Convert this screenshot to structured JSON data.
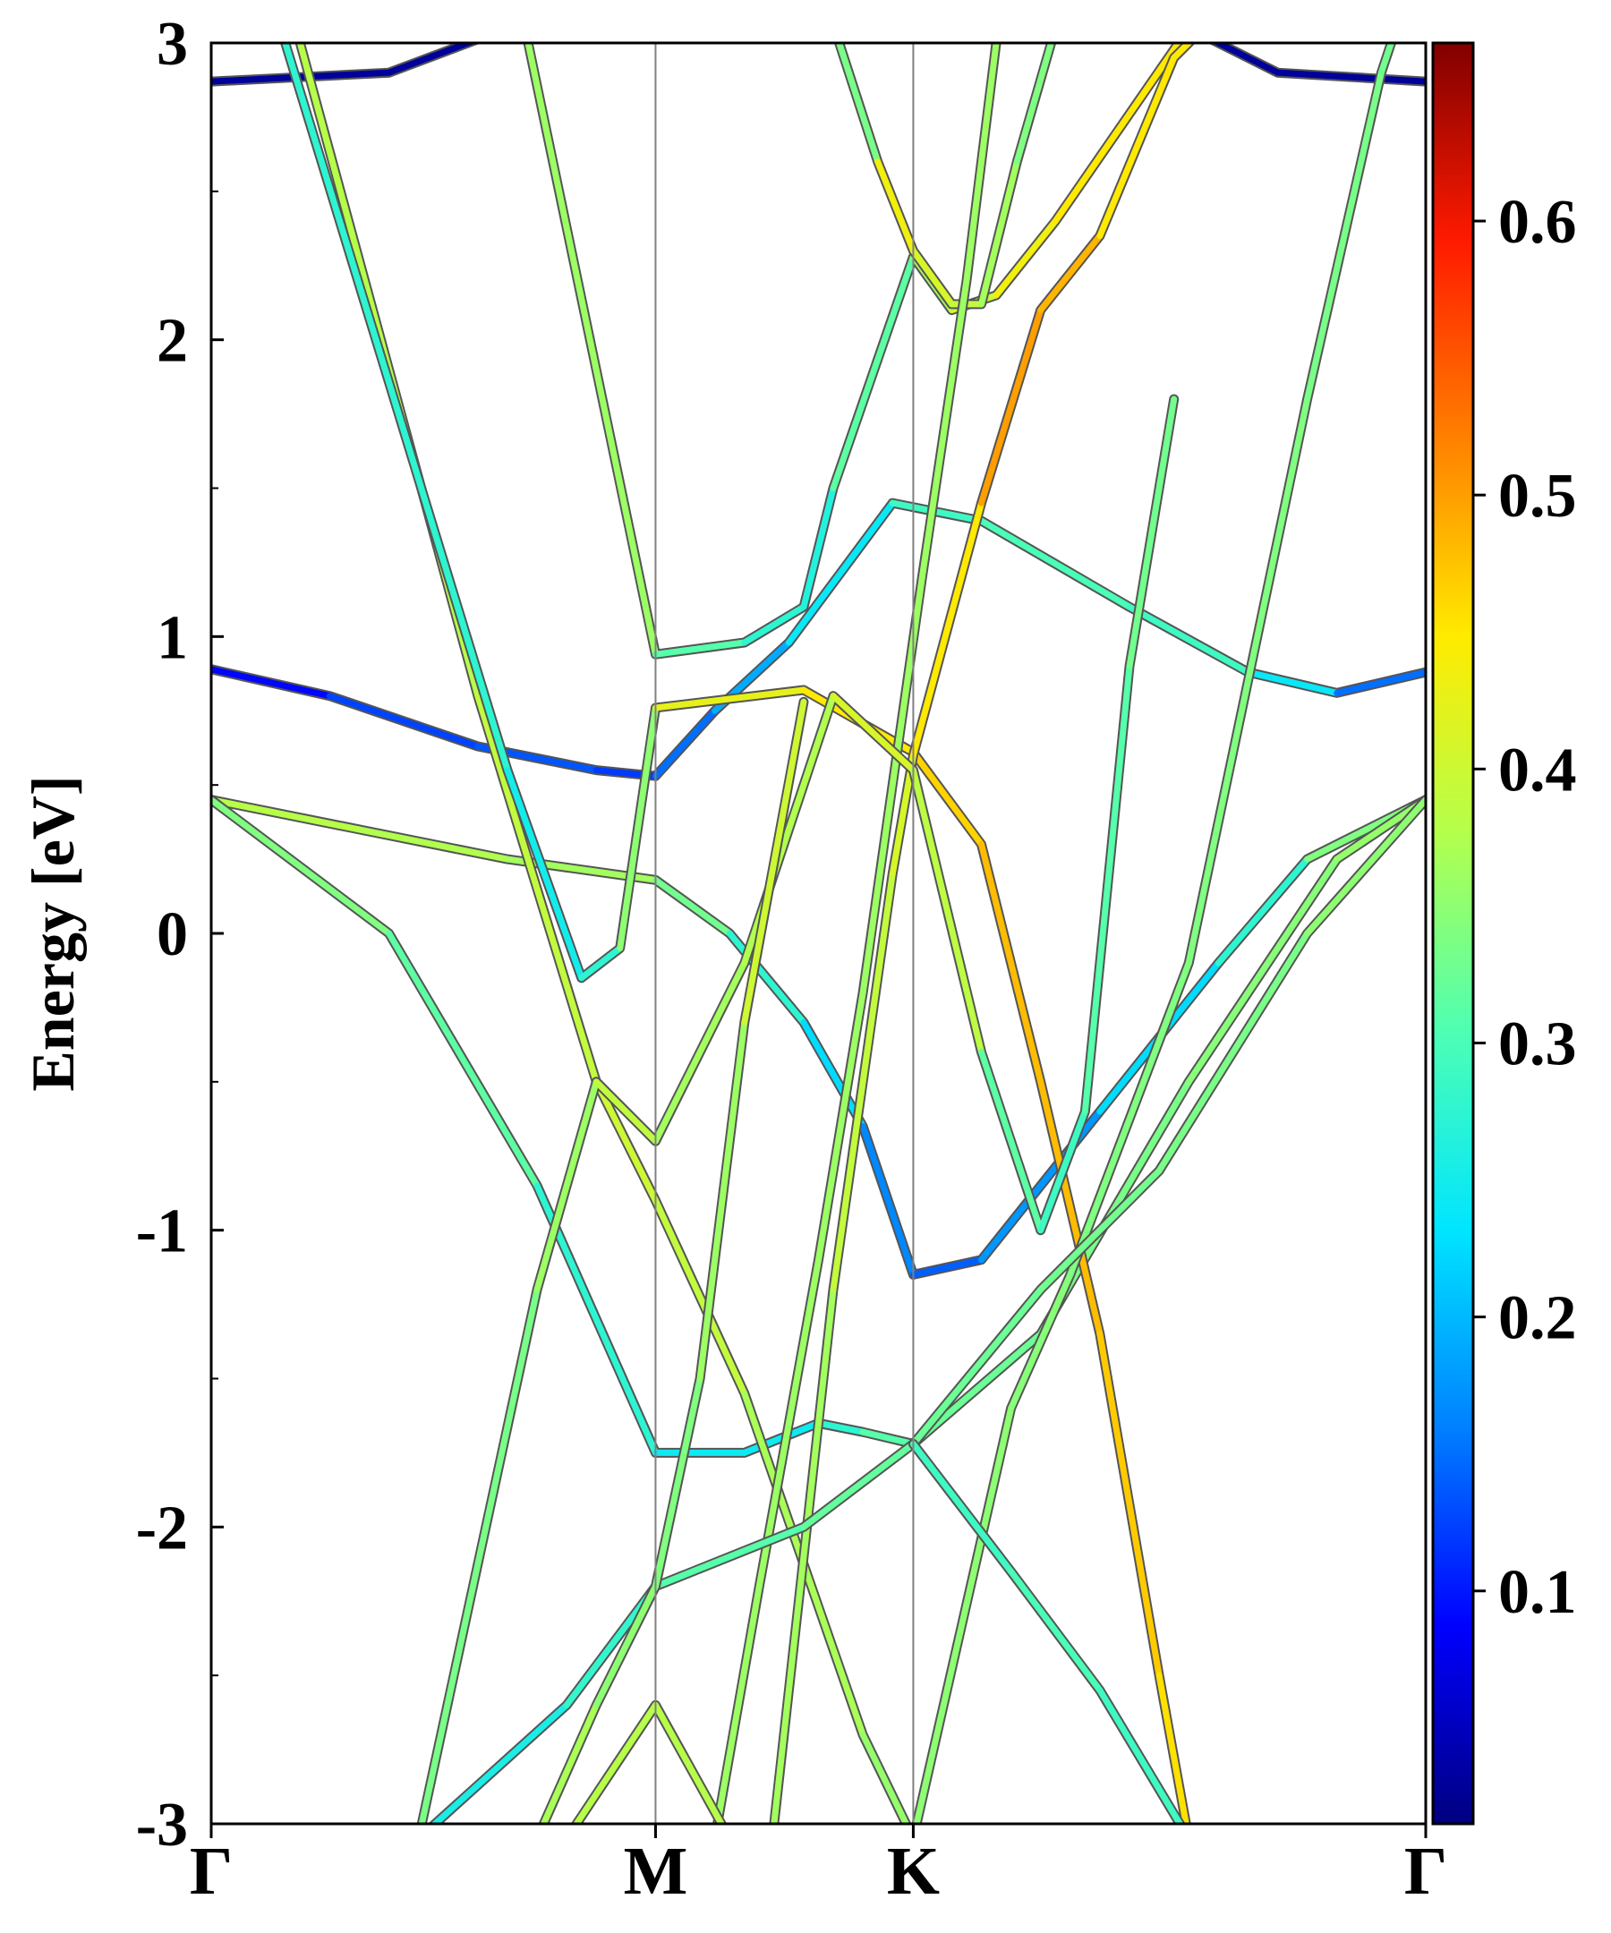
{
  "chart_data": {
    "type": "line",
    "title": "",
    "ylabel": "Energy [eV]",
    "xlabel": "",
    "ylim": [
      -3,
      3
    ],
    "xlim": [
      0,
      4.1
    ],
    "yticks": [
      -3,
      -2,
      -1,
      0,
      1,
      2,
      3
    ],
    "ytick_labels": [
      "-3",
      "-2",
      "-1",
      "0",
      "1",
      "2",
      "3"
    ],
    "kpoints": [
      {
        "label": "Γ",
        "x": 0
      },
      {
        "label": "M",
        "x": 1.5
      },
      {
        "label": "K",
        "x": 2.37
      },
      {
        "label": "Γ",
        "x": 4.1
      }
    ],
    "grid": false,
    "colorbar": {
      "min": 0.015,
      "max": 0.665,
      "ticks": [
        0.1,
        0.2,
        0.3,
        0.4,
        0.5,
        0.6
      ],
      "tick_labels": [
        "0.1",
        "0.2",
        "0.3",
        "0.4",
        "0.5",
        "0.6"
      ],
      "colormap": [
        "#000080",
        "#0000ff",
        "#0080ff",
        "#00e5ff",
        "#4dffb3",
        "#b3ff4d",
        "#ffeb00",
        "#ff8000",
        "#ff1a00",
        "#800000"
      ]
    },
    "series": [
      {
        "points": [
          [
            0,
            2.87
          ],
          [
            0.6,
            2.9
          ],
          [
            1.0,
            3.05
          ]
        ],
        "weights": [
          0.03,
          0.03,
          0.03
        ]
      },
      {
        "points": [
          [
            4.1,
            2.87
          ],
          [
            3.6,
            2.9
          ],
          [
            3.3,
            3.05
          ]
        ],
        "weights": [
          0.03,
          0.03,
          0.03
        ]
      },
      {
        "points": [
          [
            0,
            0.89
          ],
          [
            0.4,
            0.8
          ],
          [
            0.9,
            0.63
          ],
          [
            1.3,
            0.55
          ],
          [
            1.5,
            0.53
          ],
          [
            1.7,
            0.75
          ],
          [
            1.95,
            0.98
          ],
          [
            2.3,
            1.45
          ],
          [
            2.6,
            1.39
          ],
          [
            3.1,
            1.1
          ],
          [
            3.5,
            0.88
          ],
          [
            3.8,
            0.81
          ],
          [
            4.1,
            0.88
          ]
        ],
        "weights": [
          0.08,
          0.1,
          0.15,
          0.12,
          0.12,
          0.18,
          0.2,
          0.28,
          0.3,
          0.3,
          0.28,
          0.2,
          0.1
        ]
      },
      {
        "points": [
          [
            0,
            0.45
          ],
          [
            0.5,
            0.35
          ],
          [
            1.0,
            0.25
          ],
          [
            1.5,
            0.18
          ],
          [
            1.75,
            0.0
          ],
          [
            2.0,
            -0.3
          ],
          [
            2.2,
            -0.65
          ],
          [
            2.37,
            -1.15
          ],
          [
            2.6,
            -1.1
          ],
          [
            3.0,
            -0.6
          ],
          [
            3.4,
            -0.1
          ],
          [
            3.7,
            0.25
          ],
          [
            4.1,
            0.45
          ]
        ],
        "weights": [
          0.38,
          0.38,
          0.37,
          0.36,
          0.3,
          0.25,
          0.2,
          0.13,
          0.15,
          0.2,
          0.25,
          0.3,
          0.38
        ]
      },
      {
        "points": [
          [
            0,
            0.45
          ],
          [
            0.6,
            0.0
          ],
          [
            1.1,
            -0.85
          ],
          [
            1.5,
            -1.75
          ],
          [
            1.8,
            -1.75
          ],
          [
            2.05,
            -1.65
          ],
          [
            2.2,
            -1.68
          ],
          [
            2.37,
            -1.72
          ],
          [
            2.8,
            -1.35
          ],
          [
            3.3,
            -0.5
          ],
          [
            3.8,
            0.25
          ],
          [
            4.1,
            0.45
          ]
        ],
        "weights": [
          0.35,
          0.33,
          0.3,
          0.25,
          0.24,
          0.25,
          0.3,
          0.32,
          0.33,
          0.34,
          0.35,
          0.36
        ]
      },
      {
        "points": [
          [
            0.3,
            3.0
          ],
          [
            0.9,
            0.8
          ],
          [
            1.3,
            -0.5
          ],
          [
            1.5,
            -0.9
          ],
          [
            1.8,
            -1.55
          ],
          [
            2.2,
            -2.7
          ],
          [
            2.37,
            -3.05
          ]
        ],
        "weights": [
          0.38,
          0.38,
          0.4,
          0.4,
          0.38,
          0.36,
          0.35
        ]
      },
      {
        "points": [
          [
            0.25,
            3.0
          ],
          [
            1.0,
            0.55
          ],
          [
            1.25,
            -0.15
          ],
          [
            1.38,
            -0.05
          ],
          [
            1.5,
            0.76
          ],
          [
            2.0,
            0.82
          ],
          [
            2.37,
            0.61
          ],
          [
            2.6,
            0.3
          ],
          [
            2.8,
            -0.5
          ],
          [
            3.0,
            -1.35
          ],
          [
            3.2,
            -2.5
          ],
          [
            3.3,
            -3.05
          ]
        ],
        "weights": [
          0.3,
          0.25,
          0.25,
          0.3,
          0.4,
          0.45,
          0.45,
          0.48,
          0.48,
          0.48,
          0.46,
          0.45
        ]
      },
      {
        "points": [
          [
            1.07,
            3.0
          ],
          [
            1.5,
            0.94
          ],
          [
            1.8,
            0.98
          ],
          [
            2.0,
            1.1
          ],
          [
            2.1,
            1.5
          ],
          [
            2.37,
            2.28
          ],
          [
            2.5,
            2.1
          ],
          [
            2.65,
            2.15
          ],
          [
            2.85,
            2.4
          ],
          [
            3.3,
            3.05
          ]
        ],
        "weights": [
          0.4,
          0.32,
          0.3,
          0.25,
          0.28,
          0.35,
          0.38,
          0.42,
          0.45,
          0.45
        ]
      },
      {
        "points": [
          [
            2.12,
            3.0
          ],
          [
            2.25,
            2.6
          ],
          [
            2.37,
            2.3
          ],
          [
            2.5,
            2.12
          ],
          [
            2.6,
            2.12
          ],
          [
            2.72,
            2.6
          ],
          [
            2.85,
            3.05
          ]
        ],
        "weights": [
          0.22,
          0.45,
          0.42,
          0.4,
          0.38,
          0.35,
          0.33
        ]
      },
      {
        "points": [
          [
            1.9,
            -3.0
          ],
          [
            2.1,
            -1.2
          ],
          [
            2.3,
            0.2
          ],
          [
            2.37,
            0.6
          ],
          [
            2.6,
            1.45
          ],
          [
            2.8,
            2.1
          ],
          [
            3.0,
            2.35
          ],
          [
            3.25,
            2.95
          ],
          [
            3.35,
            3.05
          ]
        ],
        "weights": [
          0.35,
          0.38,
          0.4,
          0.42,
          0.48,
          0.52,
          0.45,
          0.45,
          0.45
        ]
      },
      {
        "points": [
          [
            2.37,
            -3.05
          ],
          [
            2.7,
            -1.6
          ],
          [
            2.9,
            -1.15
          ],
          [
            3.3,
            -0.1
          ],
          [
            3.7,
            1.8
          ],
          [
            3.95,
            2.9
          ],
          [
            4.0,
            3.05
          ]
        ],
        "weights": [
          0.35,
          0.35,
          0.34,
          0.34,
          0.34,
          0.33,
          0.33
        ]
      },
      {
        "points": [
          [
            2.65,
            3.0
          ],
          [
            2.55,
            2.2
          ],
          [
            2.4,
            1.2
          ],
          [
            2.2,
            -0.2
          ],
          [
            2.05,
            -1.1
          ],
          [
            1.85,
            -2.2
          ],
          [
            1.7,
            -3.05
          ]
        ],
        "weights": [
          0.36,
          0.36,
          0.36,
          0.36,
          0.36,
          0.36,
          0.36
        ]
      },
      {
        "points": [
          [
            0.7,
            -3.05
          ],
          [
            1.1,
            -1.2
          ],
          [
            1.3,
            -0.5
          ],
          [
            1.5,
            -0.7
          ],
          [
            1.8,
            -0.1
          ],
          [
            2.1,
            0.8
          ],
          [
            2.37,
            0.55
          ],
          [
            2.6,
            -0.4
          ],
          [
            2.8,
            -1.0
          ],
          [
            2.95,
            -0.6
          ],
          [
            3.1,
            0.9
          ],
          [
            3.25,
            1.8
          ]
        ],
        "weights": [
          0.35,
          0.32,
          0.4,
          0.38,
          0.35,
          0.4,
          0.42,
          0.35,
          0.28,
          0.3,
          0.32,
          0.34
        ]
      },
      {
        "points": [
          [
            0.7,
            -3.05
          ],
          [
            1.2,
            -2.6
          ],
          [
            1.5,
            -2.2
          ],
          [
            2.0,
            -2.0
          ],
          [
            2.37,
            -1.72
          ],
          [
            2.8,
            -1.2
          ],
          [
            3.2,
            -0.8
          ],
          [
            3.7,
            0.0
          ],
          [
            4.1,
            0.45
          ]
        ],
        "weights": [
          0.25,
          0.26,
          0.3,
          0.32,
          0.32,
          0.33,
          0.33,
          0.34,
          0.36
        ]
      },
      {
        "points": [
          [
            1.1,
            -3.05
          ],
          [
            1.3,
            -2.6
          ],
          [
            1.5,
            -2.2
          ],
          [
            1.65,
            -1.5
          ],
          [
            1.8,
            -0.3
          ],
          [
            2.0,
            0.78
          ]
        ],
        "weights": [
          0.38,
          0.36,
          0.34,
          0.34,
          0.38,
          0.42
        ]
      },
      {
        "points": [
          [
            1.2,
            -3.05
          ],
          [
            1.5,
            -2.6
          ],
          [
            1.75,
            -3.05
          ]
        ],
        "weights": [
          0.38,
          0.38,
          0.38
        ]
      },
      {
        "points": [
          [
            2.37,
            -1.72
          ],
          [
            2.7,
            -2.15
          ],
          [
            3.0,
            -2.55
          ],
          [
            3.3,
            -3.05
          ]
        ],
        "weights": [
          0.28,
          0.3,
          0.3,
          0.28
        ]
      }
    ]
  }
}
